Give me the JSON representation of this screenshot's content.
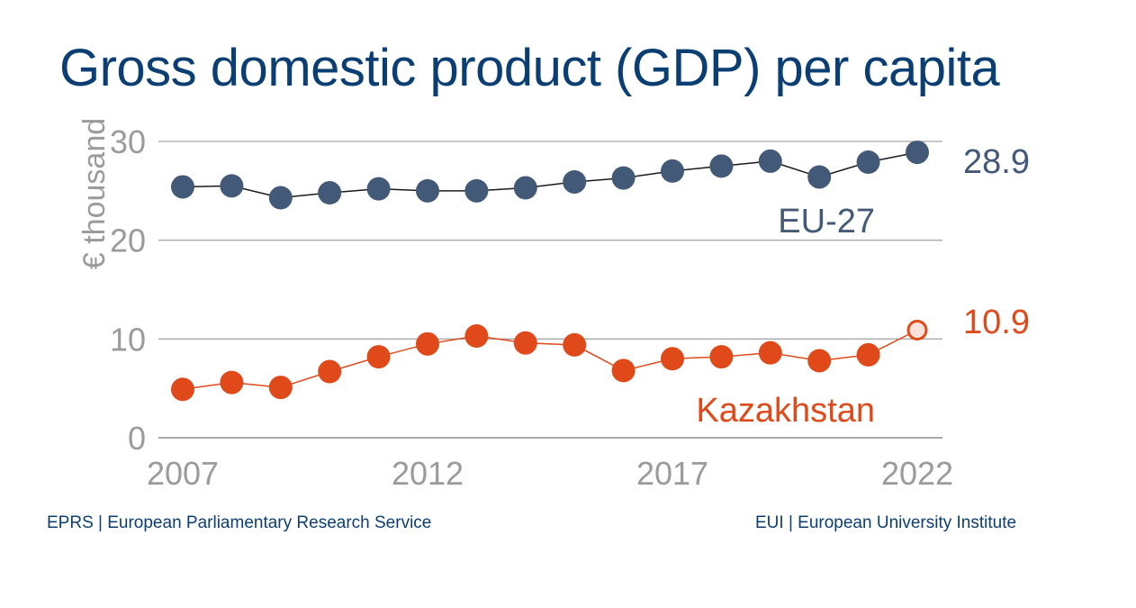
{
  "title": "Gross domestic product (GDP) per capita",
  "footer": {
    "left": "EPRS | European Parliamentary Research Service",
    "right": "EUI | European University Institute"
  },
  "colors": {
    "title": "#0b3f73",
    "eu": "#435978",
    "kaz": "#e04a1b",
    "kaz_last_fill": "#fbe3dc",
    "axis_text": "#9b9b9b",
    "grid": "#a8a8a8"
  },
  "chart_data": {
    "type": "line",
    "ylabel": "€ thousand",
    "xlabel": "",
    "ylim": [
      0,
      30
    ],
    "xlim": [
      2007,
      2022
    ],
    "yticks": [
      0,
      10,
      20,
      30
    ],
    "xticks": [
      2007,
      2012,
      2017,
      2022
    ],
    "grid": true,
    "x": [
      2007,
      2008,
      2009,
      2010,
      2011,
      2012,
      2013,
      2014,
      2015,
      2016,
      2017,
      2018,
      2019,
      2020,
      2021,
      2022
    ],
    "series": [
      {
        "name": "EU-27",
        "values": [
          25.4,
          25.5,
          24.3,
          24.8,
          25.2,
          25.0,
          25.0,
          25.3,
          25.9,
          26.3,
          27.0,
          27.5,
          28.0,
          26.4,
          27.9,
          28.9
        ],
        "end_label": "28.9"
      },
      {
        "name": "Kazakhstan",
        "values": [
          4.9,
          5.6,
          5.1,
          6.7,
          8.2,
          9.5,
          10.3,
          9.6,
          9.4,
          6.8,
          8.0,
          8.2,
          8.6,
          7.8,
          8.4,
          10.9
        ],
        "end_label": "10.9"
      }
    ]
  }
}
